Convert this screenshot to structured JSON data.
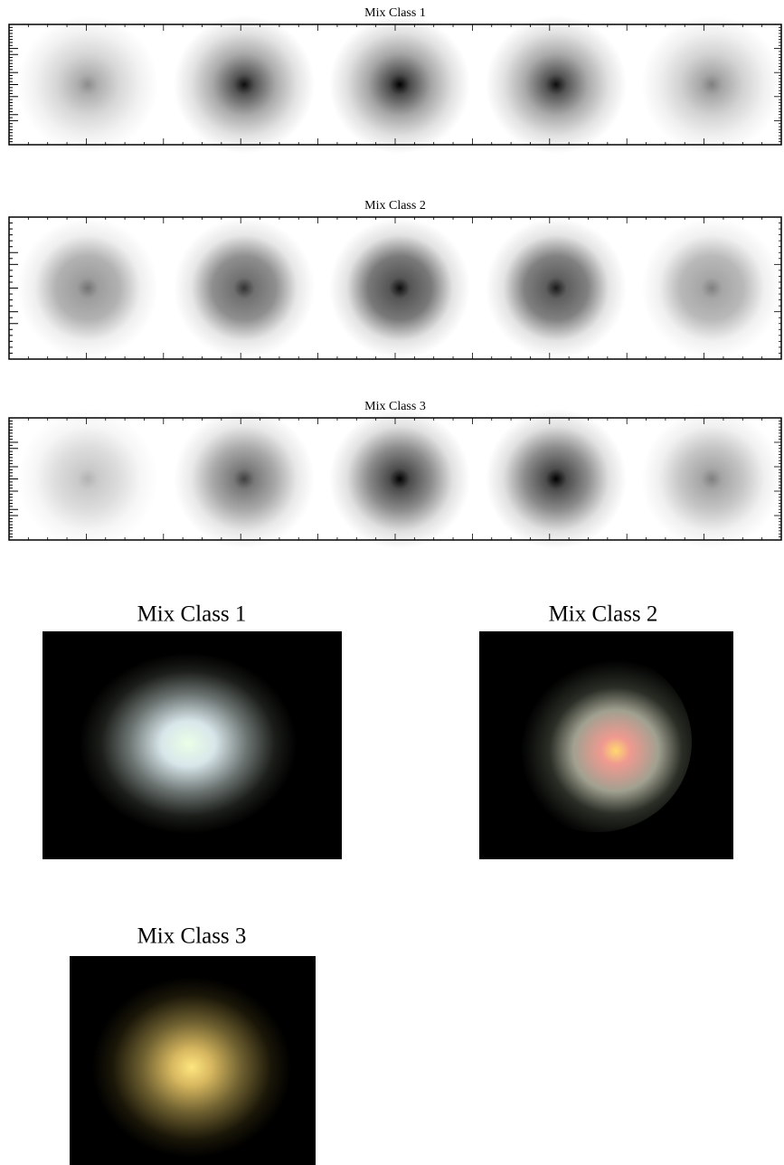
{
  "strips": [
    {
      "title": "Mix Class 1"
    },
    {
      "title": "Mix Class 2"
    },
    {
      "title": "Mix Class 3"
    }
  ],
  "color_images": [
    {
      "title": "Mix Class 1"
    },
    {
      "title": "Mix Class 2"
    },
    {
      "title": "Mix Class 3"
    }
  ]
}
